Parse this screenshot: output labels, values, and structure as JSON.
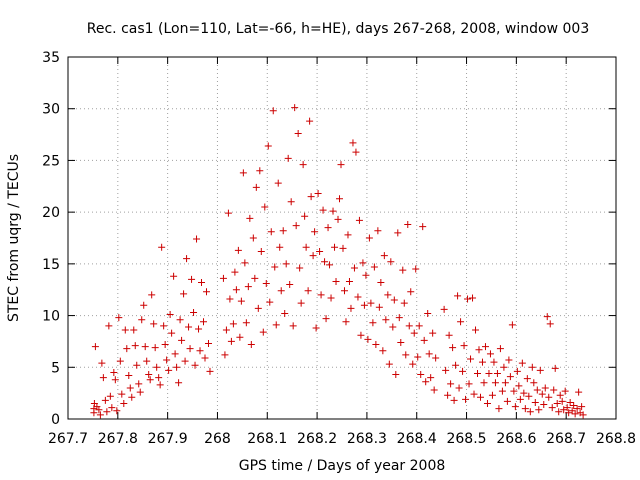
{
  "chart_data": {
    "type": "scatter",
    "title": "Rec. cas1 (Lon=110, Lat=-66, h=HE), days 267-268, 2008, window 003",
    "xlabel": "GPS time / Days of year 2008",
    "ylabel": "STEC from uqrg / TECUs",
    "xlim": [
      267.7,
      268.8
    ],
    "ylim": [
      0,
      35
    ],
    "xticks": [
      "267.7",
      "267.8",
      "267.9",
      "268",
      "268.1",
      "268.2",
      "268.3",
      "268.4",
      "268.5",
      "268.6",
      "268.7",
      "268.8"
    ],
    "yticks": [
      "0",
      "5",
      "10",
      "15",
      "20",
      "25",
      "30",
      "35"
    ],
    "grid": true,
    "marker": "+",
    "marker_color": "#cc0000",
    "series": [
      {
        "points": [
          [
            267.752,
            0.6
          ],
          [
            267.752,
            1.0
          ],
          [
            267.753,
            1.5
          ],
          [
            267.755,
            7.0
          ],
          [
            267.758,
            1.2
          ],
          [
            267.762,
            0.9
          ],
          [
            267.765,
            0.4
          ],
          [
            267.768,
            5.4
          ],
          [
            267.771,
            4.0
          ],
          [
            267.775,
            1.8
          ],
          [
            267.778,
            0.7
          ],
          [
            267.782,
            9.0
          ],
          [
            267.785,
            2.2
          ],
          [
            267.788,
            1.1
          ],
          [
            267.792,
            4.5
          ],
          [
            267.795,
            3.8
          ],
          [
            267.798,
            0.8
          ],
          [
            267.802,
            9.8
          ],
          [
            267.805,
            5.6
          ],
          [
            267.808,
            2.4
          ],
          [
            267.812,
            1.5
          ],
          [
            267.815,
            8.6
          ],
          [
            267.818,
            6.8
          ],
          [
            267.822,
            4.2
          ],
          [
            267.825,
            3.0
          ],
          [
            267.828,
            2.1
          ],
          [
            267.832,
            8.6
          ],
          [
            267.835,
            7.1
          ],
          [
            267.838,
            5.2
          ],
          [
            267.842,
            3.4
          ],
          [
            267.845,
            2.6
          ],
          [
            267.848,
            9.6
          ],
          [
            267.852,
            11.0
          ],
          [
            267.855,
            7.0
          ],
          [
            267.858,
            5.6
          ],
          [
            267.862,
            4.3
          ],
          [
            267.865,
            3.8
          ],
          [
            267.868,
            12.0
          ],
          [
            267.872,
            9.2
          ],
          [
            267.875,
            6.9
          ],
          [
            267.878,
            5.0
          ],
          [
            267.882,
            4.0
          ],
          [
            267.885,
            3.3
          ],
          [
            267.888,
            16.6
          ],
          [
            267.892,
            9.0
          ],
          [
            267.895,
            7.2
          ],
          [
            267.898,
            5.7
          ],
          [
            267.902,
            4.7
          ],
          [
            267.905,
            10.1
          ],
          [
            267.908,
            8.3
          ],
          [
            267.912,
            13.8
          ],
          [
            267.915,
            6.3
          ],
          [
            267.918,
            5.0
          ],
          [
            267.922,
            3.5
          ],
          [
            267.925,
            9.6
          ],
          [
            267.928,
            7.6
          ],
          [
            267.932,
            12.1
          ],
          [
            267.935,
            5.6
          ],
          [
            267.938,
            15.5
          ],
          [
            267.942,
            8.9
          ],
          [
            267.945,
            6.8
          ],
          [
            267.948,
            13.5
          ],
          [
            267.952,
            10.3
          ],
          [
            267.955,
            5.2
          ],
          [
            267.958,
            17.4
          ],
          [
            267.962,
            8.7
          ],
          [
            267.965,
            6.6
          ],
          [
            267.968,
            13.2
          ],
          [
            267.972,
            9.4
          ],
          [
            267.975,
            5.9
          ],
          [
            267.978,
            12.3
          ],
          [
            267.982,
            7.3
          ],
          [
            267.985,
            4.6
          ],
          [
            268.012,
            13.6
          ],
          [
            268.015,
            6.2
          ],
          [
            268.018,
            8.6
          ],
          [
            268.022,
            19.9
          ],
          [
            268.025,
            11.6
          ],
          [
            268.028,
            7.5
          ],
          [
            268.032,
            9.2
          ],
          [
            268.035,
            14.2
          ],
          [
            268.038,
            12.5
          ],
          [
            268.042,
            16.3
          ],
          [
            268.045,
            7.9
          ],
          [
            268.048,
            11.4
          ],
          [
            268.052,
            23.8
          ],
          [
            268.055,
            15.1
          ],
          [
            268.058,
            9.3
          ],
          [
            268.062,
            12.8
          ],
          [
            268.065,
            19.4
          ],
          [
            268.068,
            7.2
          ],
          [
            268.072,
            17.5
          ],
          [
            268.075,
            13.6
          ],
          [
            268.078,
            22.4
          ],
          [
            268.082,
            10.7
          ],
          [
            268.085,
            24.0
          ],
          [
            268.088,
            16.2
          ],
          [
            268.092,
            8.4
          ],
          [
            268.095,
            20.5
          ],
          [
            268.098,
            13.1
          ],
          [
            268.102,
            26.4
          ],
          [
            268.105,
            11.3
          ],
          [
            268.108,
            18.1
          ],
          [
            268.112,
            29.8
          ],
          [
            268.115,
            14.7
          ],
          [
            268.118,
            9.1
          ],
          [
            268.122,
            22.8
          ],
          [
            268.125,
            16.6
          ],
          [
            268.128,
            12.4
          ],
          [
            268.132,
            18.2
          ],
          [
            268.135,
            10.2
          ],
          [
            268.138,
            15.0
          ],
          [
            268.142,
            25.2
          ],
          [
            268.145,
            13.0
          ],
          [
            268.148,
            21.0
          ],
          [
            268.152,
            9.0
          ],
          [
            268.155,
            30.1
          ],
          [
            268.158,
            18.7
          ],
          [
            268.162,
            27.6
          ],
          [
            268.165,
            14.6
          ],
          [
            268.168,
            11.2
          ],
          [
            268.172,
            24.6
          ],
          [
            268.175,
            19.6
          ],
          [
            268.178,
            16.6
          ],
          [
            268.182,
            12.4
          ],
          [
            268.185,
            28.8
          ],
          [
            268.188,
            21.5
          ],
          [
            268.192,
            15.8
          ],
          [
            268.195,
            18.1
          ],
          [
            268.198,
            8.8
          ],
          [
            268.202,
            21.8
          ],
          [
            268.205,
            16.2
          ],
          [
            268.208,
            12.0
          ],
          [
            268.212,
            20.2
          ],
          [
            268.215,
            15.2
          ],
          [
            268.218,
            9.7
          ],
          [
            268.222,
            18.5
          ],
          [
            268.225,
            14.9
          ],
          [
            268.228,
            11.7
          ],
          [
            268.232,
            20.1
          ],
          [
            268.235,
            16.6
          ],
          [
            268.238,
            13.3
          ],
          [
            268.242,
            19.3
          ],
          [
            268.245,
            21.3
          ],
          [
            268.248,
            24.6
          ],
          [
            268.252,
            16.5
          ],
          [
            268.255,
            12.4
          ],
          [
            268.258,
            9.4
          ],
          [
            268.262,
            17.8
          ],
          [
            268.265,
            13.3
          ],
          [
            268.268,
            10.7
          ],
          [
            268.272,
            26.7
          ],
          [
            268.275,
            14.6
          ],
          [
            268.278,
            25.8
          ],
          [
            268.282,
            11.8
          ],
          [
            268.285,
            19.2
          ],
          [
            268.288,
            8.1
          ],
          [
            268.292,
            15.1
          ],
          [
            268.295,
            11.0
          ],
          [
            268.298,
            13.9
          ],
          [
            268.302,
            7.7
          ],
          [
            268.305,
            17.5
          ],
          [
            268.308,
            11.2
          ],
          [
            268.312,
            9.3
          ],
          [
            268.315,
            14.7
          ],
          [
            268.318,
            7.2
          ],
          [
            268.322,
            18.2
          ],
          [
            268.325,
            10.8
          ],
          [
            268.328,
            13.2
          ],
          [
            268.332,
            6.6
          ],
          [
            268.335,
            15.8
          ],
          [
            268.338,
            9.6
          ],
          [
            268.342,
            12.0
          ],
          [
            268.345,
            5.3
          ],
          [
            268.348,
            15.2
          ],
          [
            268.352,
            8.9
          ],
          [
            268.355,
            11.5
          ],
          [
            268.358,
            4.3
          ],
          [
            268.362,
            18.0
          ],
          [
            268.365,
            9.8
          ],
          [
            268.368,
            7.4
          ],
          [
            268.372,
            14.4
          ],
          [
            268.375,
            11.2
          ],
          [
            268.378,
            6.2
          ],
          [
            268.382,
            18.8
          ],
          [
            268.385,
            9.0
          ],
          [
            268.388,
            12.3
          ],
          [
            268.392,
            5.3
          ],
          [
            268.395,
            8.3
          ],
          [
            268.398,
            14.5
          ],
          [
            268.402,
            6.0
          ],
          [
            268.405,
            9.0
          ],
          [
            268.408,
            4.3
          ],
          [
            268.412,
            18.6
          ],
          [
            268.415,
            7.6
          ],
          [
            268.418,
            3.6
          ],
          [
            268.422,
            10.2
          ],
          [
            268.425,
            6.3
          ],
          [
            268.428,
            4.0
          ],
          [
            268.432,
            8.3
          ],
          [
            268.435,
            2.8
          ],
          [
            268.438,
            5.9
          ],
          [
            268.455,
            10.6
          ],
          [
            268.458,
            4.7
          ],
          [
            268.462,
            2.3
          ],
          [
            268.465,
            8.1
          ],
          [
            268.468,
            3.4
          ],
          [
            268.472,
            6.9
          ],
          [
            268.475,
            1.8
          ],
          [
            268.478,
            5.2
          ],
          [
            268.482,
            11.9
          ],
          [
            268.485,
            3.0
          ],
          [
            268.488,
            9.4
          ],
          [
            268.492,
            4.6
          ],
          [
            268.495,
            7.1
          ],
          [
            268.498,
            1.9
          ],
          [
            268.502,
            11.6
          ],
          [
            268.505,
            3.4
          ],
          [
            268.508,
            5.8
          ],
          [
            268.512,
            11.7
          ],
          [
            268.515,
            2.4
          ],
          [
            268.518,
            8.6
          ],
          [
            268.522,
            4.4
          ],
          [
            268.525,
            6.7
          ],
          [
            268.528,
            2.1
          ],
          [
            268.532,
            5.5
          ],
          [
            268.535,
            3.5
          ],
          [
            268.538,
            7.0
          ],
          [
            268.542,
            1.5
          ],
          [
            268.545,
            4.4
          ],
          [
            268.548,
            6.3
          ],
          [
            268.552,
            2.3
          ],
          [
            268.555,
            5.5
          ],
          [
            268.558,
            3.5
          ],
          [
            268.562,
            4.4
          ],
          [
            268.565,
            1.0
          ],
          [
            268.568,
            6.8
          ],
          [
            268.572,
            2.7
          ],
          [
            268.575,
            5.0
          ],
          [
            268.578,
            3.5
          ],
          [
            268.582,
            1.7
          ],
          [
            268.585,
            5.7
          ],
          [
            268.588,
            4.1
          ],
          [
            268.592,
            9.1
          ],
          [
            268.595,
            2.7
          ],
          [
            268.598,
            1.2
          ],
          [
            268.602,
            4.6
          ],
          [
            268.605,
            3.2
          ],
          [
            268.608,
            1.9
          ],
          [
            268.612,
            5.4
          ],
          [
            268.615,
            2.5
          ],
          [
            268.618,
            1.0
          ],
          [
            268.622,
            3.9
          ],
          [
            268.625,
            2.2
          ],
          [
            268.628,
            0.7
          ],
          [
            268.632,
            5.0
          ],
          [
            268.635,
            3.5
          ],
          [
            268.638,
            1.6
          ],
          [
            268.642,
            2.8
          ],
          [
            268.645,
            0.9
          ],
          [
            268.648,
            4.7
          ],
          [
            268.652,
            2.4
          ],
          [
            268.655,
            1.4
          ],
          [
            268.658,
            3.0
          ],
          [
            268.662,
            9.9
          ],
          [
            268.665,
            2.1
          ],
          [
            268.668,
            9.2
          ],
          [
            268.672,
            1.1
          ],
          [
            268.675,
            2.8
          ],
          [
            268.678,
            4.9
          ],
          [
            268.682,
            1.5
          ],
          [
            268.685,
            0.7
          ],
          [
            268.688,
            2.3
          ],
          [
            268.692,
            1.7
          ],
          [
            268.695,
            0.9
          ],
          [
            268.698,
            2.7
          ],
          [
            268.702,
            1.1
          ],
          [
            268.705,
            0.6
          ],
          [
            268.708,
            1.6
          ],
          [
            268.712,
            0.8
          ],
          [
            268.715,
            1.3
          ],
          [
            268.718,
            0.5
          ],
          [
            268.722,
            1.0
          ],
          [
            268.725,
            2.6
          ],
          [
            268.728,
            0.6
          ],
          [
            268.731,
            1.2
          ],
          [
            268.734,
            0.4
          ]
        ]
      }
    ]
  }
}
